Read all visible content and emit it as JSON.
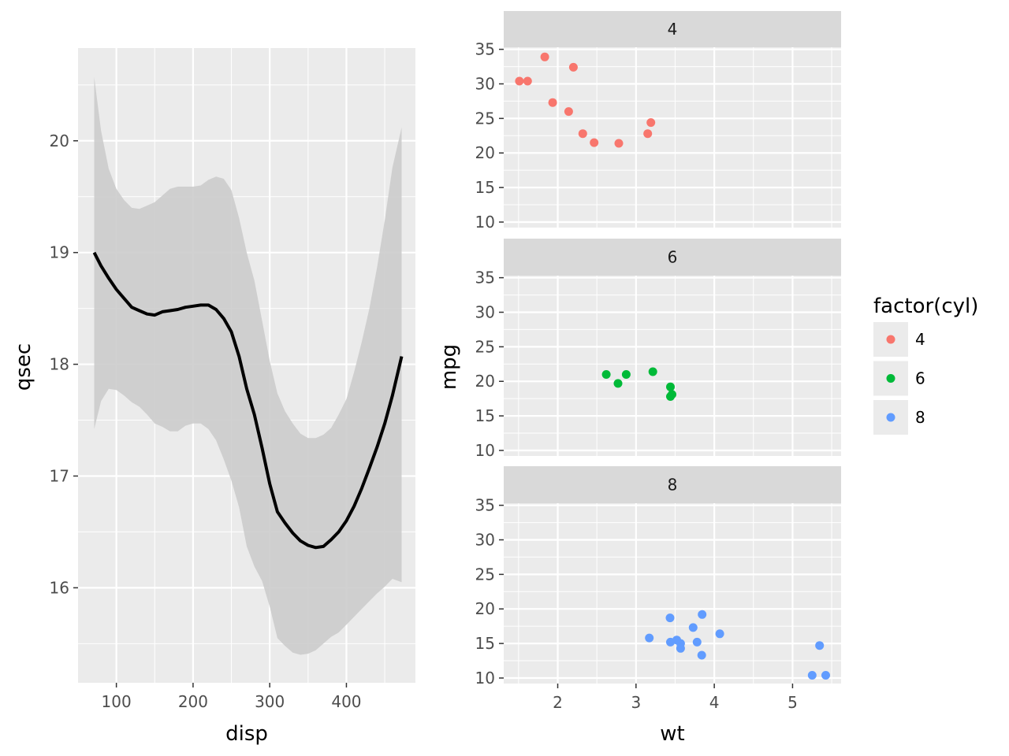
{
  "colors": {
    "panel_bg": "#ebebeb",
    "grid_major": "#ffffff",
    "strip_bg": "#d9d9d9",
    "ribbon": "#cccccc",
    "smooth_line": "#000000",
    "cyl4": "#F8766D",
    "cyl6": "#00BA38",
    "cyl8": "#619CFF"
  },
  "chart_data": [
    {
      "type": "line",
      "title": "",
      "xlabel": "disp",
      "ylabel": "qsec",
      "xlim": [
        50,
        490
      ],
      "ylim": [
        15.15,
        20.83
      ],
      "xticks": [
        100,
        200,
        300,
        400
      ],
      "yticks": [
        16,
        17,
        18,
        19,
        20
      ],
      "xtick_labels": [
        "100",
        "200",
        "300",
        "400"
      ],
      "ytick_labels": [
        "16",
        "17",
        "18",
        "19",
        "20"
      ],
      "series": [
        {
          "name": "smooth",
          "x": [
            71.1,
            80,
            90,
            100,
            110,
            120,
            130,
            140,
            150,
            160,
            170,
            180,
            190,
            200,
            210,
            220,
            230,
            240,
            250,
            260,
            270,
            280,
            290,
            300,
            310,
            320,
            330,
            340,
            350,
            360,
            370,
            380,
            390,
            400,
            410,
            420,
            430,
            440,
            450,
            460,
            472
          ],
          "y": [
            19.0,
            18.88,
            18.77,
            18.67,
            18.59,
            18.51,
            18.48,
            18.45,
            18.44,
            18.47,
            18.48,
            18.49,
            18.51,
            18.52,
            18.53,
            18.53,
            18.49,
            18.41,
            18.29,
            18.07,
            17.78,
            17.55,
            17.25,
            16.93,
            16.68,
            16.58,
            16.49,
            16.42,
            16.38,
            16.36,
            16.37,
            16.43,
            16.5,
            16.6,
            16.73,
            16.89,
            17.07,
            17.26,
            17.47,
            17.72,
            18.07
          ],
          "ymin": [
            17.42,
            17.67,
            17.78,
            17.77,
            17.72,
            17.66,
            17.62,
            17.55,
            17.47,
            17.44,
            17.4,
            17.4,
            17.45,
            17.47,
            17.47,
            17.42,
            17.32,
            17.15,
            16.96,
            16.72,
            16.37,
            16.19,
            16.06,
            15.83,
            15.55,
            15.48,
            15.42,
            15.4,
            15.41,
            15.44,
            15.5,
            15.56,
            15.6,
            15.67,
            15.74,
            15.81,
            15.88,
            15.95,
            16.01,
            16.08,
            16.05
          ],
          "ymax": [
            20.57,
            20.09,
            19.75,
            19.57,
            19.47,
            19.4,
            19.39,
            19.42,
            19.45,
            19.51,
            19.57,
            19.59,
            19.59,
            19.59,
            19.6,
            19.65,
            19.68,
            19.66,
            19.56,
            19.31,
            19.0,
            18.75,
            18.39,
            18.03,
            17.74,
            17.58,
            17.47,
            17.38,
            17.34,
            17.34,
            17.37,
            17.43,
            17.55,
            17.69,
            17.93,
            18.2,
            18.5,
            18.87,
            19.29,
            19.76,
            20.12
          ]
        }
      ]
    },
    {
      "type": "scatter",
      "title": "",
      "xlabel": "wt",
      "ylabel": "mpg",
      "xlim": [
        1.31,
        5.62
      ],
      "ylim": [
        9.2,
        35.3
      ],
      "xticks": [
        2,
        3,
        4,
        5
      ],
      "yticks": [
        10,
        15,
        20,
        25,
        30,
        35
      ],
      "xtick_labels": [
        "2",
        "3",
        "4",
        "5"
      ],
      "ytick_labels": [
        "10",
        "15",
        "20",
        "25",
        "30",
        "35"
      ],
      "facets": [
        {
          "strip": "4",
          "color_key": "cyl4",
          "points": [
            [
              1.51,
              30.4
            ],
            [
              1.615,
              30.4
            ],
            [
              1.835,
              33.9
            ],
            [
              1.935,
              27.3
            ],
            [
              2.14,
              26.0
            ],
            [
              2.2,
              32.4
            ],
            [
              2.32,
              22.8
            ],
            [
              2.465,
              21.5
            ],
            [
              2.78,
              21.4
            ],
            [
              3.15,
              22.8
            ],
            [
              3.19,
              24.4
            ]
          ]
        },
        {
          "strip": "6",
          "color_key": "cyl6",
          "points": [
            [
              2.62,
              21.0
            ],
            [
              2.77,
              19.7
            ],
            [
              2.875,
              21.0
            ],
            [
              3.215,
              21.4
            ],
            [
              3.44,
              19.2
            ],
            [
              3.44,
              17.8
            ],
            [
              3.46,
              18.1
            ]
          ]
        },
        {
          "strip": "8",
          "color_key": "cyl8",
          "points": [
            [
              3.17,
              15.8
            ],
            [
              3.435,
              18.7
            ],
            [
              3.44,
              15.2
            ],
            [
              3.52,
              15.5
            ],
            [
              3.57,
              15.0
            ],
            [
              3.57,
              14.3
            ],
            [
              3.73,
              17.3
            ],
            [
              3.78,
              15.2
            ],
            [
              3.84,
              13.3
            ],
            [
              3.845,
              19.2
            ],
            [
              4.07,
              16.4
            ],
            [
              5.25,
              10.4
            ],
            [
              5.345,
              14.7
            ],
            [
              5.424,
              10.4
            ]
          ]
        }
      ]
    }
  ],
  "legend": {
    "title": "factor(cyl)",
    "items": [
      {
        "label": "4",
        "color_key": "cyl4"
      },
      {
        "label": "6",
        "color_key": "cyl6"
      },
      {
        "label": "8",
        "color_key": "cyl8"
      }
    ]
  }
}
